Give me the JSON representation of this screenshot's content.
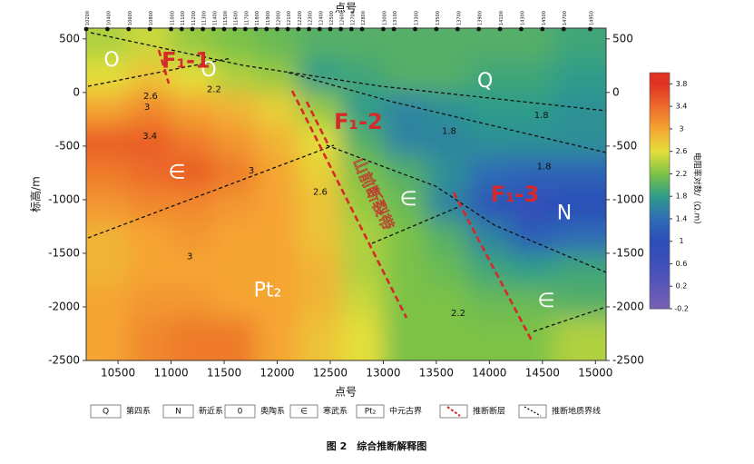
{
  "chart_data": {
    "type": "contour",
    "top_axis_label": "点号",
    "x_label": "点号",
    "y_label": "标高/m",
    "caption": "图 2　综合推断解释图",
    "xlim": [
      10200,
      15100
    ],
    "ylim": [
      -2500,
      600
    ],
    "xticks": [
      10500,
      11000,
      11500,
      12000,
      12500,
      13000,
      13500,
      14000,
      14500,
      15000
    ],
    "yticks": [
      500,
      0,
      -500,
      -1000,
      -1500,
      -2000,
      -2500
    ],
    "stations": [
      10200,
      10400,
      10600,
      10800,
      11000,
      11100,
      11200,
      11300,
      11400,
      11500,
      11600,
      11700,
      11800,
      11900,
      12000,
      12100,
      12200,
      12300,
      12400,
      12500,
      12600,
      12700,
      12800,
      13000,
      13100,
      13300,
      13500,
      13700,
      13900,
      14100,
      14300,
      14500,
      14700,
      14950
    ],
    "grid_x": [
      10400,
      10800,
      11200,
      11600,
      12000,
      12400,
      12800,
      13200,
      13600,
      14000,
      14400,
      14800
    ],
    "grid_y": [
      450,
      150,
      -150,
      -450,
      -750,
      -1050,
      -1350,
      -1650,
      -1950,
      -2250
    ],
    "z": [
      [
        2.4,
        2.5,
        2.3,
        2.2,
        2.1,
        2.0,
        2.0,
        2.0,
        2.0,
        2.0,
        2.0,
        1.9
      ],
      [
        2.6,
        2.8,
        2.6,
        2.4,
        2.3,
        1.8,
        1.9,
        2.0,
        2.0,
        1.9,
        1.9,
        1.8
      ],
      [
        3.0,
        3.2,
        3.0,
        2.9,
        2.7,
        2.3,
        1.8,
        1.6,
        1.7,
        1.8,
        1.8,
        1.7
      ],
      [
        3.5,
        3.5,
        3.3,
        3.1,
        2.9,
        2.6,
        2.0,
        1.6,
        1.6,
        1.7,
        1.7,
        1.7
      ],
      [
        3.3,
        3.4,
        3.5,
        3.3,
        3.0,
        2.7,
        2.2,
        2.0,
        1.7,
        1.4,
        1.3,
        1.3
      ],
      [
        3.1,
        3.2,
        3.2,
        3.1,
        3.0,
        2.8,
        2.3,
        2.1,
        1.6,
        1.1,
        0.9,
        1.0
      ],
      [
        2.9,
        3.0,
        3.1,
        3.0,
        3.0,
        2.8,
        2.4,
        2.2,
        2.0,
        1.6,
        1.2,
        1.4
      ],
      [
        2.9,
        3.0,
        3.0,
        3.0,
        3.0,
        2.9,
        2.4,
        2.2,
        2.1,
        1.9,
        1.8,
        1.9
      ],
      [
        3.0,
        3.1,
        3.1,
        3.0,
        3.0,
        2.9,
        2.5,
        2.2,
        2.2,
        2.1,
        2.1,
        2.0
      ],
      [
        3.0,
        3.2,
        3.3,
        3.3,
        3.0,
        2.8,
        2.6,
        2.2,
        2.2,
        2.2,
        2.2,
        2.4
      ]
    ],
    "colorbar": {
      "label": "电阻率对数/（Ω.m）",
      "clim": [
        -0.2,
        4.0
      ],
      "ticks": [
        -0.2,
        0.2,
        0.6,
        1,
        1.4,
        1.8,
        2.2,
        2.6,
        3,
        3.4,
        3.8
      ],
      "colors": [
        "#7a5fb2",
        "#5c57b9",
        "#3f4fba",
        "#2c4db8",
        "#2f6cb6",
        "#2e9c8a",
        "#7cc246",
        "#e4df3a",
        "#f5a533",
        "#ec6b2a",
        "#e03223"
      ]
    },
    "contour_labels": [
      {
        "value": 2.6,
        "x": 10807,
        "y": -35
      },
      {
        "value": 3,
        "x": 10773,
        "y": -135
      },
      {
        "value": 3.4,
        "x": 10800,
        "y": -410
      },
      {
        "value": 2.2,
        "x": 11405,
        "y": 30
      },
      {
        "value": 3,
        "x": 11757,
        "y": -730
      },
      {
        "value": 3,
        "x": 11176,
        "y": -1530
      },
      {
        "value": 2.6,
        "x": 12406,
        "y": -930
      },
      {
        "value": 1.8,
        "x": 13620,
        "y": -360
      },
      {
        "value": 1.8,
        "x": 14490,
        "y": -215
      },
      {
        "value": 1.8,
        "x": 14515,
        "y": -690
      },
      {
        "value": 2.2,
        "x": 13706,
        "y": -2060
      }
    ],
    "annotations": [
      {
        "text": "O",
        "x": 10440,
        "y": 295,
        "kind": "unit"
      },
      {
        "text": "O",
        "x": 11355,
        "y": 200,
        "kind": "unit"
      },
      {
        "text": "Q",
        "x": 13960,
        "y": 100,
        "kind": "unit"
      },
      {
        "text": "∈",
        "x": 11055,
        "y": -750,
        "kind": "unit"
      },
      {
        "text": "∈",
        "x": 13236,
        "y": -1000,
        "kind": "unit"
      },
      {
        "text": "N",
        "x": 14707,
        "y": -1130,
        "kind": "unit"
      },
      {
        "text": "Pt₂",
        "x": 11910,
        "y": -1850,
        "kind": "unit"
      },
      {
        "text": "∈",
        "x": 14535,
        "y": -1950,
        "kind": "unit"
      },
      {
        "text": "F₁-1",
        "x": 11140,
        "y": 290,
        "kind": "fault"
      },
      {
        "text": "F₁-2",
        "x": 12765,
        "y": -280,
        "kind": "fault"
      },
      {
        "text": "F₁-3",
        "x": 14240,
        "y": -960,
        "kind": "fault"
      },
      {
        "text": "山前断裂带",
        "x": 12900,
        "y": -950,
        "kind": "zone"
      }
    ],
    "legend": [
      {
        "symbol": "Q",
        "label": "第四系"
      },
      {
        "symbol": "N",
        "label": "新近系"
      },
      {
        "symbol": "0",
        "label": "奥陶系"
      },
      {
        "symbol": "∈",
        "label": "寒武系"
      },
      {
        "symbol": "Pt₂",
        "label": "中元古界"
      },
      {
        "label": "推断断层"
      },
      {
        "label": "推断地质界线"
      }
    ]
  }
}
